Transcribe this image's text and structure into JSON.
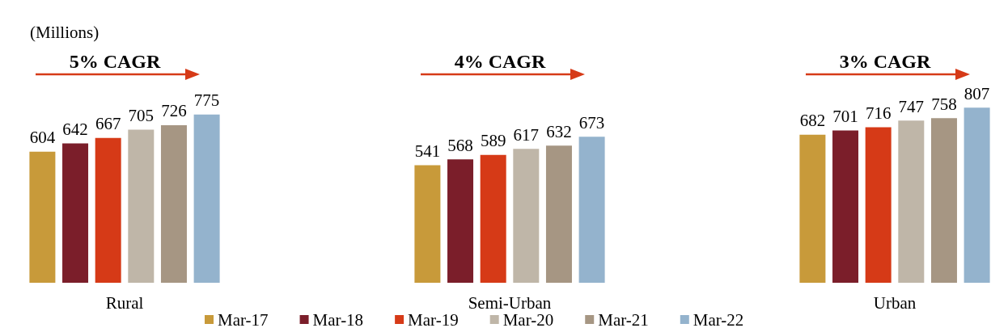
{
  "chart_data": {
    "type": "bar",
    "ylabel": "(Millions)",
    "categories": [
      "Rural",
      "Semi-Urban",
      "Urban"
    ],
    "series": [
      {
        "name": "Mar-17",
        "color": "#c89a3a",
        "values": [
          604,
          541,
          682
        ]
      },
      {
        "name": "Mar-18",
        "color": "#7b1e2a",
        "values": [
          642,
          568,
          701
        ]
      },
      {
        "name": "Mar-19",
        "color": "#d63a17",
        "values": [
          667,
          589,
          716
        ]
      },
      {
        "name": "Mar-20",
        "color": "#bfb6a8",
        "values": [
          705,
          617,
          747
        ]
      },
      {
        "name": "Mar-21",
        "color": "#a69683",
        "values": [
          726,
          632,
          758
        ]
      },
      {
        "name": "Mar-22",
        "color": "#94b3cd",
        "values": [
          775,
          673,
          807
        ]
      }
    ],
    "data_labels": true,
    "legend": "bottom",
    "annotations": [
      "5% CAGR",
      "4% CAGR",
      "3% CAGR"
    ]
  }
}
